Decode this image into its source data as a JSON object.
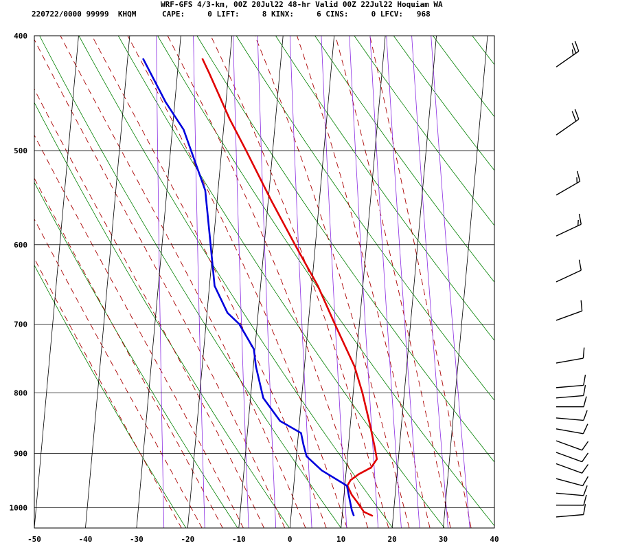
{
  "header": {
    "title": "WRF-GFS 4/3-km, 00Z 20Jul22 48-hr Valid 00Z 22Jul22 Hoquiam WA",
    "station": "220722/0000 99999  KHQM",
    "indices": "CAPE:     0 LIFT:     8 KINX:     6 CINS:     0 LFCV:   968"
  },
  "colors": {
    "temperature": "#e00000",
    "dewpoint": "#0000dd",
    "isotherm": "#000000",
    "dry_adiabat": "#008000",
    "moist_adiabat": "#aa0000",
    "mixing_ratio": "#8a2be2",
    "wind_barb": "#000000"
  },
  "chart_data": {
    "type": "skew-t",
    "pressure_axis": {
      "top": 400,
      "bottom": 1040,
      "scale": "log",
      "tick_labels": [
        "400",
        "500",
        "600",
        "700",
        "800",
        "900",
        "1000"
      ]
    },
    "temperature_axis": {
      "min": -50,
      "max": 40,
      "tick_labels": [
        "-50",
        "-40",
        "-30",
        "-20",
        "-10",
        "0",
        "10",
        "20",
        "30",
        "40"
      ]
    },
    "series": [
      {
        "values": [
          {
            "p": 1016,
            "t": 16.0
          },
          {
            "p": 1008,
            "t": 14.2
          },
          {
            "p": 990,
            "t": 12.8
          },
          {
            "p": 975,
            "t": 11.5
          },
          {
            "p": 958,
            "t": 10.5
          },
          {
            "p": 948,
            "t": 11.0
          },
          {
            "p": 937,
            "t": 12.5
          },
          {
            "p": 925,
            "t": 14.8
          },
          {
            "p": 910,
            "t": 15.8
          },
          {
            "p": 890,
            "t": 15.2
          },
          {
            "p": 850,
            "t": 13.8
          },
          {
            "p": 800,
            "t": 11.8
          },
          {
            "p": 760,
            "t": 9.8
          },
          {
            "p": 700,
            "t": 5.2
          },
          {
            "p": 650,
            "t": 1.2
          },
          {
            "p": 600,
            "t": -4.0
          },
          {
            "p": 550,
            "t": -9.5
          },
          {
            "p": 500,
            "t": -15.2
          },
          {
            "p": 470,
            "t": -19.0
          },
          {
            "p": 430,
            "t": -23.8
          },
          {
            "p": 418,
            "t": -25.4
          }
        ]
      },
      {
        "values": [
          {
            "p": 1016,
            "t": 12.3
          },
          {
            "p": 1005,
            "t": 11.8
          },
          {
            "p": 985,
            "t": 11.2
          },
          {
            "p": 958,
            "t": 10.4
          },
          {
            "p": 930,
            "t": 5.2
          },
          {
            "p": 905,
            "t": 2.0
          },
          {
            "p": 885,
            "t": 1.2
          },
          {
            "p": 865,
            "t": 0.5
          },
          {
            "p": 845,
            "t": -3.8
          },
          {
            "p": 808,
            "t": -7.5
          },
          {
            "p": 760,
            "t": -9.5
          },
          {
            "p": 735,
            "t": -10.2
          },
          {
            "p": 700,
            "t": -13.5
          },
          {
            "p": 685,
            "t": -16.0
          },
          {
            "p": 650,
            "t": -19.0
          },
          {
            "p": 600,
            "t": -20.5
          },
          {
            "p": 540,
            "t": -22.5
          },
          {
            "p": 520,
            "t": -24.2
          },
          {
            "p": 480,
            "t": -27.8
          },
          {
            "p": 455,
            "t": -31.8
          },
          {
            "p": 418,
            "t": -37.0
          }
        ]
      }
    ],
    "winds": [
      {
        "p": 425,
        "dir": 235,
        "kt": 25
      },
      {
        "p": 485,
        "dir": 235,
        "kt": 20
      },
      {
        "p": 545,
        "dir": 240,
        "kt": 15
      },
      {
        "p": 590,
        "dir": 245,
        "kt": 15
      },
      {
        "p": 645,
        "dir": 245,
        "kt": 10
      },
      {
        "p": 695,
        "dir": 250,
        "kt": 10
      },
      {
        "p": 755,
        "dir": 260,
        "kt": 10
      },
      {
        "p": 792,
        "dir": 265,
        "kt": 10
      },
      {
        "p": 808,
        "dir": 265,
        "kt": 10
      },
      {
        "p": 822,
        "dir": 270,
        "kt": 10
      },
      {
        "p": 840,
        "dir": 275,
        "kt": 10
      },
      {
        "p": 858,
        "dir": 280,
        "kt": 10
      },
      {
        "p": 878,
        "dir": 290,
        "kt": 10
      },
      {
        "p": 898,
        "dir": 290,
        "kt": 10
      },
      {
        "p": 918,
        "dir": 290,
        "kt": 10
      },
      {
        "p": 945,
        "dir": 285,
        "kt": 10
      },
      {
        "p": 972,
        "dir": 275,
        "kt": 10
      },
      {
        "p": 995,
        "dir": 270,
        "kt": 10
      },
      {
        "p": 1018,
        "dir": 265,
        "kt": 10
      }
    ]
  }
}
